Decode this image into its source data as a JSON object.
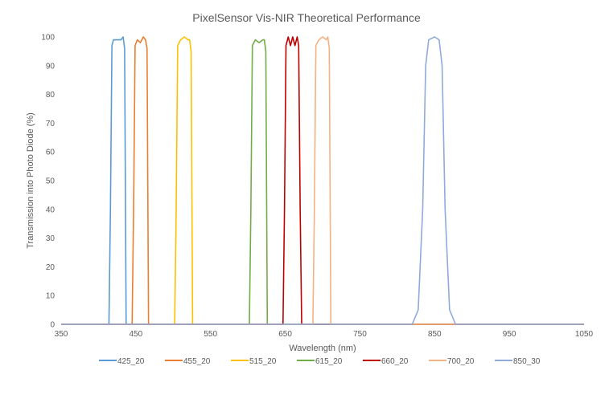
{
  "chart_data": {
    "type": "line",
    "title": "PixelSensor Vis-NIR Theoretical Performance",
    "xlabel": "Wavelength (nm)",
    "ylabel": "Transmission into Photo Diode (%)",
    "xlim": [
      350,
      1050
    ],
    "ylim": [
      0,
      100
    ],
    "xticks": [
      350,
      450,
      550,
      650,
      750,
      850,
      950,
      1050
    ],
    "yticks": [
      0,
      10,
      20,
      30,
      40,
      50,
      60,
      70,
      80,
      90,
      100
    ],
    "grid": false,
    "legend_placement": "bottom",
    "series": [
      {
        "name": "425_20",
        "color": "#5b9bd5",
        "x": [
          350,
          414,
          416,
          418,
          420,
          425,
          430,
          433,
          435,
          437,
          1050
        ],
        "y": [
          0,
          0,
          40,
          97,
          99,
          99,
          99,
          100,
          96,
          0,
          0
        ]
      },
      {
        "name": "455_20",
        "color": "#ed7d31",
        "x": [
          350,
          445,
          447,
          449,
          452,
          456,
          460,
          463,
          465,
          467,
          1050
        ],
        "y": [
          0,
          0,
          40,
          97,
          99,
          98,
          100,
          99,
          96,
          0,
          0
        ]
      },
      {
        "name": "515_20",
        "color": "#ffc000",
        "x": [
          350,
          502,
          504,
          506,
          510,
          515,
          520,
          522,
          524,
          526,
          1050
        ],
        "y": [
          0,
          0,
          40,
          97,
          99,
          100,
          99,
          99,
          95,
          0,
          0
        ]
      },
      {
        "name": "615_20",
        "color": "#70ad47",
        "x": [
          350,
          602,
          604,
          606,
          610,
          615,
          620,
          622,
          624,
          626,
          1050
        ],
        "y": [
          0,
          0,
          40,
          97,
          99,
          98,
          99,
          99,
          95,
          0,
          0
        ]
      },
      {
        "name": "660_20",
        "color": "#c00000",
        "x": [
          350,
          647,
          649,
          651,
          654,
          657,
          660,
          663,
          666,
          668,
          670,
          672,
          1050
        ],
        "y": [
          0,
          0,
          40,
          97,
          100,
          97,
          100,
          97,
          100,
          97,
          40,
          0,
          0
        ]
      },
      {
        "name": "700_20",
        "color": "#f4b183",
        "x": [
          350,
          687,
          689,
          691,
          695,
          700,
          705,
          707,
          709,
          711,
          1050
        ],
        "y": [
          0,
          0,
          40,
          97,
          99,
          100,
          99,
          100,
          96,
          0,
          0
        ]
      },
      {
        "name": "850_30",
        "color": "#8faadc",
        "x": [
          350,
          820,
          828,
          834,
          838,
          842,
          850,
          856,
          860,
          864,
          870,
          878,
          1050
        ],
        "y": [
          0,
          0,
          5,
          40,
          90,
          99,
          100,
          99,
          90,
          40,
          5,
          0,
          0
        ]
      }
    ]
  }
}
